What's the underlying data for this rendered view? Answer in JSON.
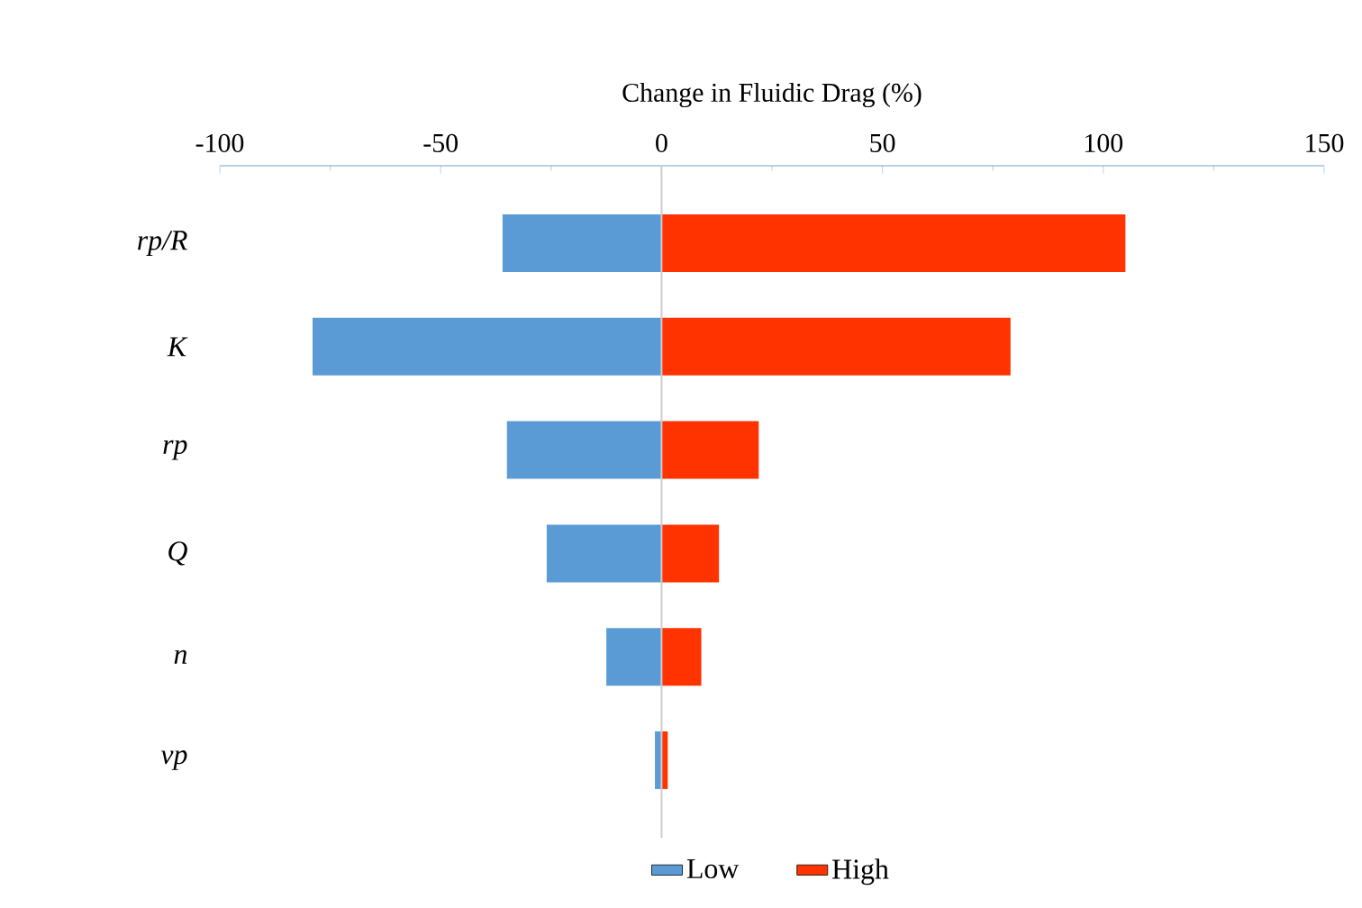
{
  "chart_data": {
    "type": "bar",
    "orientation": "horizontal",
    "xlabel": "Change in Fluidic Drag (%)",
    "categories": [
      "*rp/R*",
      "*K*",
      "*rp*",
      "*Q*",
      "*n*",
      "*vp*"
    ],
    "series": [
      {
        "name": "Low",
        "color": "#5b9bd5",
        "values": [
          -36,
          -79,
          -35,
          -26,
          -12.5,
          -1.5
        ]
      },
      {
        "name": "High",
        "color": "#ff3300",
        "values": [
          105,
          79,
          22,
          13,
          9,
          1.4
        ]
      }
    ],
    "xlim": [
      -100,
      150
    ],
    "xticks": [
      -100,
      -50,
      0,
      50,
      100,
      150
    ],
    "legend": "bottom",
    "stacked": true
  }
}
